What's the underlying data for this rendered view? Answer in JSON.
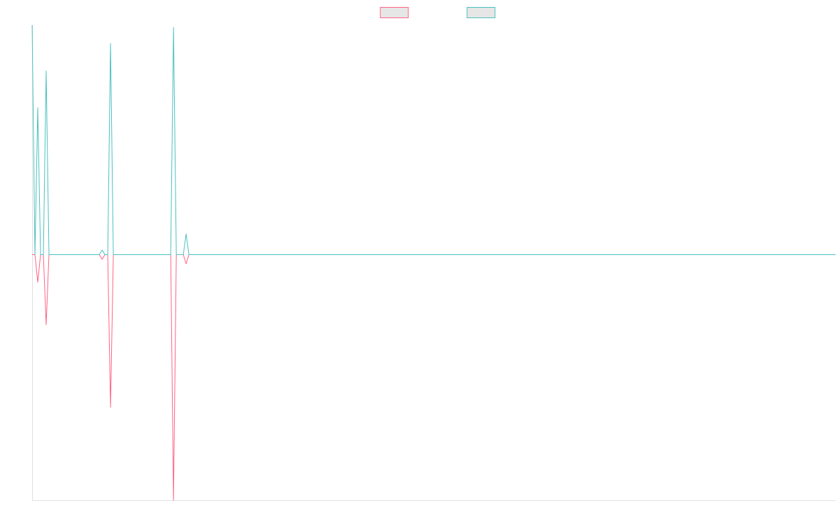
{
  "chart_data": {
    "type": "line",
    "x": [
      0,
      1,
      2,
      3,
      4,
      5,
      6,
      24,
      25,
      26,
      27,
      28,
      29,
      49.5,
      50.5,
      51.5,
      54,
      55,
      56,
      287
    ],
    "xlim": [
      0,
      287
    ],
    "ylim": [
      -1.07,
      1
    ],
    "legend": "top",
    "series": [
      {
        "color": "#ff6384",
        "values": [
          0,
          0,
          -0.12,
          0,
          0,
          -0.305,
          0,
          0,
          -0.02,
          0,
          0,
          -0.665,
          0,
          0,
          -1.07,
          0,
          0,
          -0.04,
          0,
          0
        ]
      },
      {
        "color": "#4bc0c0",
        "values": [
          1,
          0,
          0.64,
          0,
          0,
          0.8,
          0,
          0,
          0.02,
          0,
          0,
          0.92,
          0,
          0,
          0.99,
          0,
          0,
          0.09,
          0,
          0
        ]
      }
    ]
  }
}
